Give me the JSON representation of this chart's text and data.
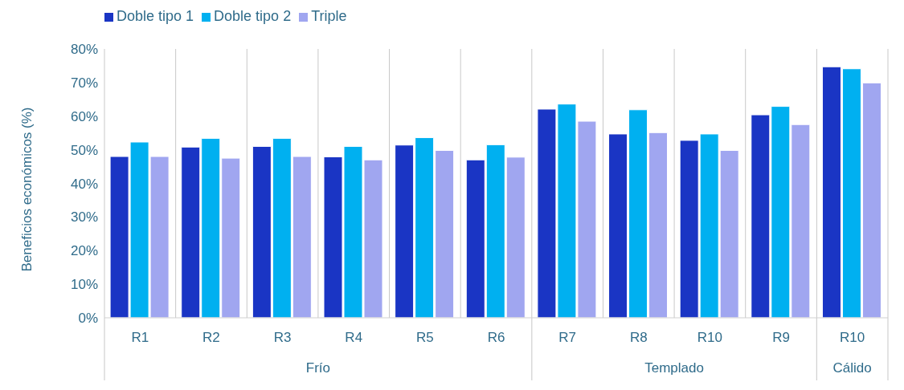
{
  "chart_data": {
    "type": "bar",
    "ylabel": "Beneficios económicos (%)",
    "categories": [
      "R1",
      "R2",
      "R3",
      "R4",
      "R5",
      "R6",
      "R7",
      "R8",
      "R10",
      "R9",
      "R10"
    ],
    "series": [
      {
        "name": "Doble tipo 1",
        "color": "#1a35c4",
        "values": [
          48,
          50.8,
          51,
          47.9,
          51.4,
          47,
          62.1,
          54.7,
          52.8,
          60.4,
          74.7
        ]
      },
      {
        "name": "Doble tipo 2",
        "color": "#00b0f0",
        "values": [
          52.3,
          53.4,
          53.4,
          51,
          53.6,
          51.5,
          63.6,
          61.9,
          54.7,
          62.9,
          74.1
        ]
      },
      {
        "name": "Triple",
        "color": "#a0a6f0",
        "values": [
          48,
          47.5,
          48,
          47,
          49.8,
          47.8,
          58.5,
          55.1,
          49.8,
          57.5,
          69.9
        ]
      }
    ],
    "ylim": [
      0,
      80
    ],
    "yticks": [
      {
        "value": 0,
        "label": "0%"
      },
      {
        "value": 10,
        "label": "10%"
      },
      {
        "value": 20,
        "label": "20%"
      },
      {
        "value": 30,
        "label": "30%"
      },
      {
        "value": 40,
        "label": "40%"
      },
      {
        "value": 50,
        "label": "50%"
      },
      {
        "value": 60,
        "label": "60%"
      },
      {
        "value": 70,
        "label": "70%"
      },
      {
        "value": 80,
        "label": "80%"
      }
    ],
    "grid": "x",
    "legend": "top left",
    "annotations": [
      "Frío",
      "Templado",
      "Cálido"
    ]
  }
}
